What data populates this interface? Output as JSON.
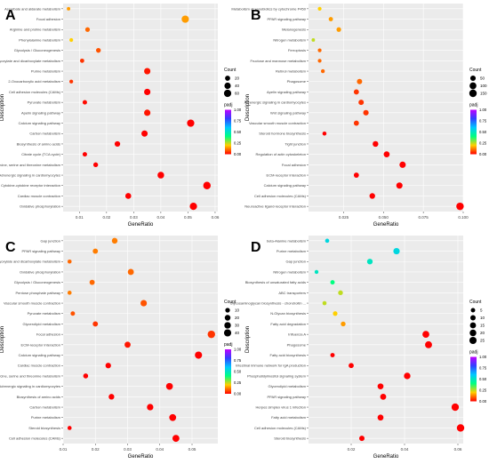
{
  "legend_titles": {
    "count": "Count",
    "padj": "padj"
  },
  "color_scale": {
    "low_color": "#ff0000",
    "mid_colors": [
      "#ffd000",
      "#00ff80",
      "#00c8ff",
      "#3040ff"
    ],
    "high_color": "#c000ff",
    "ticks": [
      "0.00",
      "0.25",
      "0.50",
      "0.75",
      "1.00"
    ]
  },
  "chart_data": [
    {
      "panel": "A",
      "type": "scatter",
      "xlabel": "GeneRatio",
      "ylabel": "Description",
      "xlim": [
        0.004,
        0.061
      ],
      "xticks": [
        "0.01",
        "0.02",
        "0.03",
        "0.04",
        "0.05",
        "0.06"
      ],
      "count_legend": [
        "20",
        "40",
        "60"
      ],
      "points": [
        {
          "term": "Ascorbate and aldarate metabolism",
          "x": 0.006,
          "count": 4,
          "padj": 0.15
        },
        {
          "term": "Focal adhesion",
          "x": 0.049,
          "count": 60,
          "padj": 0.15
        },
        {
          "term": "Arginine and proline metabolism",
          "x": 0.013,
          "count": 14,
          "padj": 0.1
        },
        {
          "term": "Phenylalanine metabolism",
          "x": 0.007,
          "count": 6,
          "padj": 0.2
        },
        {
          "term": "Glycolysis / Gluconeogenesis",
          "x": 0.017,
          "count": 16,
          "padj": 0.08
        },
        {
          "term": "Glyoxylate and dicarboxylate metabolism",
          "x": 0.011,
          "count": 10,
          "padj": 0.05
        },
        {
          "term": "Purine metabolism",
          "x": 0.035,
          "count": 40,
          "padj": 0.02
        },
        {
          "term": "2-Oxocarboxylic acid metabolism",
          "x": 0.007,
          "count": 6,
          "padj": 0.05
        },
        {
          "term": "Cell adhesion molecules (CAMs)",
          "x": 0.035,
          "count": 40,
          "padj": 0.0
        },
        {
          "term": "Pyruvate metabolism",
          "x": 0.012,
          "count": 12,
          "padj": 0.01
        },
        {
          "term": "Apelin signaling pathway",
          "x": 0.035,
          "count": 40,
          "padj": 0.02
        },
        {
          "term": "Calcium signaling pathway",
          "x": 0.051,
          "count": 60,
          "padj": 0.0
        },
        {
          "term": "Carbon metabolism",
          "x": 0.034,
          "count": 38,
          "padj": 0.0
        },
        {
          "term": "Biosynthesis of amino acids",
          "x": 0.024,
          "count": 26,
          "padj": 0.0
        },
        {
          "term": "Citrate cycle (TCA cycle)",
          "x": 0.012,
          "count": 12,
          "padj": 0.0
        },
        {
          "term": "Glycine, serine and threonine metabolism",
          "x": 0.016,
          "count": 16,
          "padj": 0.0
        },
        {
          "term": "Adrenergic signaling in cardiomyocytes",
          "x": 0.04,
          "count": 46,
          "padj": 0.0
        },
        {
          "term": "Cytokine-cytokine receptor interaction",
          "x": 0.057,
          "count": 64,
          "padj": 0.0
        },
        {
          "term": "Cardiac muscle contraction",
          "x": 0.028,
          "count": 32,
          "padj": 0.0
        },
        {
          "term": "Oxidative phosphorylation",
          "x": 0.052,
          "count": 60,
          "padj": 0.0
        }
      ]
    },
    {
      "panel": "B",
      "type": "scatter",
      "xlabel": "GeneRatio",
      "ylabel": "Description",
      "xlim": [
        0.003,
        0.1
      ],
      "xticks": [
        "0.025",
        "0.050",
        "0.075",
        "0.100"
      ],
      "count_legend": [
        "50",
        "100",
        "150"
      ],
      "points": [
        {
          "term": "Metabolism of xenobiotics by cytochrome P450",
          "x": 0.01,
          "count": 12,
          "padj": 0.2
        },
        {
          "term": "PPAR signaling pathway",
          "x": 0.017,
          "count": 22,
          "padj": 0.15
        },
        {
          "term": "Melanogenesis",
          "x": 0.022,
          "count": 28,
          "padj": 0.15
        },
        {
          "term": "Nitrogen metabolism",
          "x": 0.006,
          "count": 8,
          "padj": 0.25
        },
        {
          "term": "Ferroptosis",
          "x": 0.01,
          "count": 12,
          "padj": 0.1
        },
        {
          "term": "Fructose and mannose metabolism",
          "x": 0.01,
          "count": 12,
          "padj": 0.1
        },
        {
          "term": "Retinol metabolism",
          "x": 0.012,
          "count": 14,
          "padj": 0.1
        },
        {
          "term": "Phagosome",
          "x": 0.035,
          "count": 45,
          "padj": 0.1
        },
        {
          "term": "Apelin signaling pathway",
          "x": 0.033,
          "count": 42,
          "padj": 0.05
        },
        {
          "term": "Adrenergic signaling in cardiomyocytes",
          "x": 0.036,
          "count": 46,
          "padj": 0.05
        },
        {
          "term": "Wnt signaling pathway",
          "x": 0.039,
          "count": 50,
          "padj": 0.05
        },
        {
          "term": "Vascular smooth muscle contraction",
          "x": 0.033,
          "count": 42,
          "padj": 0.05
        },
        {
          "term": "Steroid hormone biosynthesis",
          "x": 0.013,
          "count": 16,
          "padj": 0.0
        },
        {
          "term": "Tight junction",
          "x": 0.045,
          "count": 58,
          "padj": 0.0
        },
        {
          "term": "Regulation of actin cytoskeleton",
          "x": 0.052,
          "count": 66,
          "padj": 0.0
        },
        {
          "term": "Focal adhesion",
          "x": 0.062,
          "count": 80,
          "padj": 0.0
        },
        {
          "term": "ECM-receptor interaction",
          "x": 0.033,
          "count": 42,
          "padj": 0.0
        },
        {
          "term": "Calcium signaling pathway",
          "x": 0.06,
          "count": 78,
          "padj": 0.0
        },
        {
          "term": "Cell adhesion molecules (CAMs)",
          "x": 0.043,
          "count": 56,
          "padj": 0.0
        },
        {
          "term": "Neuroactive ligand-receptor interaction",
          "x": 0.098,
          "count": 130,
          "padj": 0.0
        }
      ]
    },
    {
      "panel": "C",
      "type": "scatter",
      "xlabel": "GeneRatio",
      "ylabel": "Description",
      "xlim": [
        0.01,
        0.058
      ],
      "xticks": [
        "0.01",
        "0.02",
        "0.03",
        "0.04",
        "0.05"
      ],
      "count_legend": [
        "10",
        "20",
        "30",
        "40"
      ],
      "points": [
        {
          "term": "Gap junction",
          "x": 0.026,
          "count": 20,
          "padj": 0.12
        },
        {
          "term": "PPAR signaling pathway",
          "x": 0.02,
          "count": 15,
          "padj": 0.12
        },
        {
          "term": "Glyoxylate and dicarboxylate metabolism",
          "x": 0.012,
          "count": 6,
          "padj": 0.1
        },
        {
          "term": "Oxidative phosphorylation",
          "x": 0.031,
          "count": 24,
          "padj": 0.1
        },
        {
          "term": "Glycolysis / Gluconeogenesis",
          "x": 0.019,
          "count": 14,
          "padj": 0.1
        },
        {
          "term": "Pentose phosphate pathway",
          "x": 0.012,
          "count": 6,
          "padj": 0.12
        },
        {
          "term": "Vascular smooth muscle contraction",
          "x": 0.035,
          "count": 28,
          "padj": 0.08
        },
        {
          "term": "Pyruvate metabolism",
          "x": 0.013,
          "count": 8,
          "padj": 0.08
        },
        {
          "term": "Glycerolipid metabolism",
          "x": 0.02,
          "count": 15,
          "padj": 0.05
        },
        {
          "term": "Focal adhesion",
          "x": 0.056,
          "count": 44,
          "padj": 0.05
        },
        {
          "term": "ECM-receptor interaction",
          "x": 0.03,
          "count": 24,
          "padj": 0.02
        },
        {
          "term": "Calcium signaling pathway",
          "x": 0.052,
          "count": 40,
          "padj": 0.0
        },
        {
          "term": "Cardiac muscle contraction",
          "x": 0.024,
          "count": 18,
          "padj": 0.0
        },
        {
          "term": "Glycine, serine and threonine metabolism",
          "x": 0.017,
          "count": 12,
          "padj": 0.0
        },
        {
          "term": "Adrenergic signaling in cardiomyocytes",
          "x": 0.043,
          "count": 34,
          "padj": 0.0
        },
        {
          "term": "Biosynthesis of amino acids",
          "x": 0.025,
          "count": 19,
          "padj": 0.0
        },
        {
          "term": "Carbon metabolism",
          "x": 0.037,
          "count": 29,
          "padj": 0.0
        },
        {
          "term": "Purine metabolism",
          "x": 0.044,
          "count": 35,
          "padj": 0.0
        },
        {
          "term": "Steroid biosynthesis",
          "x": 0.012,
          "count": 6,
          "padj": 0.0
        },
        {
          "term": "Cell adhesion molecules (CAMs)",
          "x": 0.045,
          "count": 36,
          "padj": 0.0
        }
      ]
    },
    {
      "panel": "D",
      "type": "scatter",
      "xlabel": "GeneRatio",
      "ylabel": "Description",
      "xlim": [
        0.004,
        0.062
      ],
      "xticks": [
        "0.02",
        "0.04",
        "0.06"
      ],
      "count_legend": [
        "5",
        "10",
        "15",
        "20",
        "25"
      ],
      "points": [
        {
          "term": "beta-Alanine metabolism",
          "x": 0.011,
          "count": 4,
          "padj": 0.55
        },
        {
          "term": "Purine metabolism",
          "x": 0.037,
          "count": 18,
          "padj": 0.55
        },
        {
          "term": "Gap junction",
          "x": 0.027,
          "count": 12,
          "padj": 0.5
        },
        {
          "term": "Nitrogen metabolism",
          "x": 0.007,
          "count": 3,
          "padj": 0.5
        },
        {
          "term": "Biosynthesis of unsaturated fatty acids",
          "x": 0.013,
          "count": 5,
          "padj": 0.4
        },
        {
          "term": "ABC transporters",
          "x": 0.016,
          "count": 7,
          "padj": 0.25
        },
        {
          "term": "Glycosaminoglycan biosynthesis - chondroitin ...",
          "x": 0.01,
          "count": 4,
          "padj": 0.25
        },
        {
          "term": "N-Glycan biosynthesis",
          "x": 0.014,
          "count": 6,
          "padj": 0.2
        },
        {
          "term": "Fatty acid degradation",
          "x": 0.017,
          "count": 7,
          "padj": 0.15
        },
        {
          "term": "Influenza A",
          "x": 0.048,
          "count": 22,
          "padj": 0.0
        },
        {
          "term": "Phagosome",
          "x": 0.049,
          "count": 23,
          "padj": 0.0
        },
        {
          "term": "Fatty acid biosynthesis",
          "x": 0.013,
          "count": 5,
          "padj": 0.0
        },
        {
          "term": "Intestinal immune network for IgA production",
          "x": 0.02,
          "count": 9,
          "padj": 0.0
        },
        {
          "term": "Phosphatidylinositol signaling system",
          "x": 0.041,
          "count": 19,
          "padj": 0.0
        },
        {
          "term": "Glycerolipid metabolism",
          "x": 0.031,
          "count": 14,
          "padj": 0.0
        },
        {
          "term": "PPAR signaling pathway",
          "x": 0.032,
          "count": 15,
          "padj": 0.0
        },
        {
          "term": "Herpes simplex virus 1 infection",
          "x": 0.059,
          "count": 27,
          "padj": 0.0
        },
        {
          "term": "Fatty acid metabolism",
          "x": 0.031,
          "count": 14,
          "padj": 0.0
        },
        {
          "term": "Cell adhesion molecules (CAMs)",
          "x": 0.061,
          "count": 28,
          "padj": 0.0
        },
        {
          "term": "Steroid biosynthesis",
          "x": 0.024,
          "count": 10,
          "padj": 0.0
        }
      ]
    }
  ]
}
